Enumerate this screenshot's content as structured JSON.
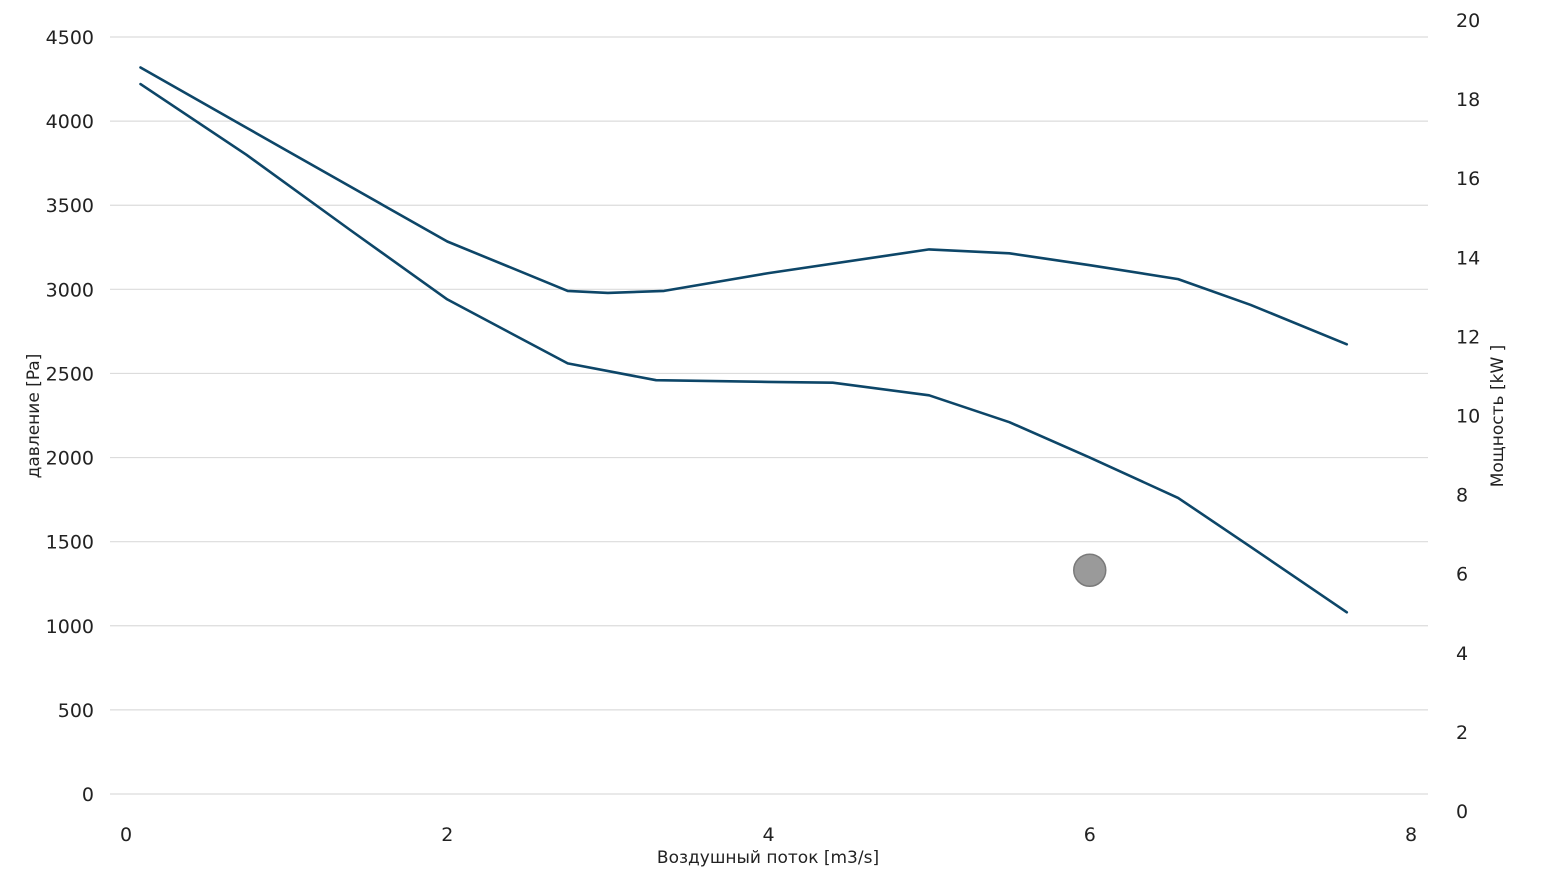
{
  "chart_data": {
    "type": "line",
    "title": "",
    "xlabel": "Воздушный поток [m3/s]",
    "ylabel": "давление [Pa]",
    "y2label": "Мощность [kW ]",
    "xlim": [
      0,
      8
    ],
    "ylim": [
      0,
      4500
    ],
    "y2lim": [
      0,
      20
    ],
    "x_ticks": [
      "0",
      "2",
      "4",
      "6",
      "8"
    ],
    "y_ticks": [
      "0",
      "500",
      "1000",
      "1500",
      "2000",
      "2500",
      "3000",
      "3500",
      "4000",
      "4500"
    ],
    "y2_ticks": [
      "0",
      "2",
      "4",
      "6",
      "8",
      "10",
      "12",
      "14",
      "16",
      "18",
      "20"
    ],
    "grid": true,
    "series": [
      {
        "axis": "y2",
        "color": "#0d4668",
        "points": [
          [
            0.09,
            18.8
          ],
          [
            1.0,
            16.7
          ],
          [
            2.0,
            14.4
          ],
          [
            2.75,
            13.15
          ],
          [
            3.0,
            13.1
          ],
          [
            3.35,
            13.15
          ],
          [
            4.0,
            13.6
          ],
          [
            5.0,
            14.2
          ],
          [
            5.5,
            14.1
          ],
          [
            6.0,
            13.8
          ],
          [
            6.55,
            13.45
          ],
          [
            7.0,
            12.8
          ],
          [
            7.6,
            11.8
          ]
        ]
      },
      {
        "axis": "y",
        "color": "#0d4668",
        "points": [
          [
            0.09,
            4220
          ],
          [
            0.75,
            3800
          ],
          [
            1.4,
            3350
          ],
          [
            2.0,
            2940
          ],
          [
            2.75,
            2560
          ],
          [
            3.3,
            2460
          ],
          [
            4.0,
            2450
          ],
          [
            4.4,
            2445
          ],
          [
            5.0,
            2370
          ],
          [
            5.5,
            2210
          ],
          [
            6.0,
            2000
          ],
          [
            6.55,
            1760
          ],
          [
            7.0,
            1470
          ],
          [
            7.6,
            1080
          ]
        ]
      }
    ],
    "operating_point": {
      "x": 6.0,
      "y": 1330,
      "color": "#9a9a9a"
    }
  }
}
